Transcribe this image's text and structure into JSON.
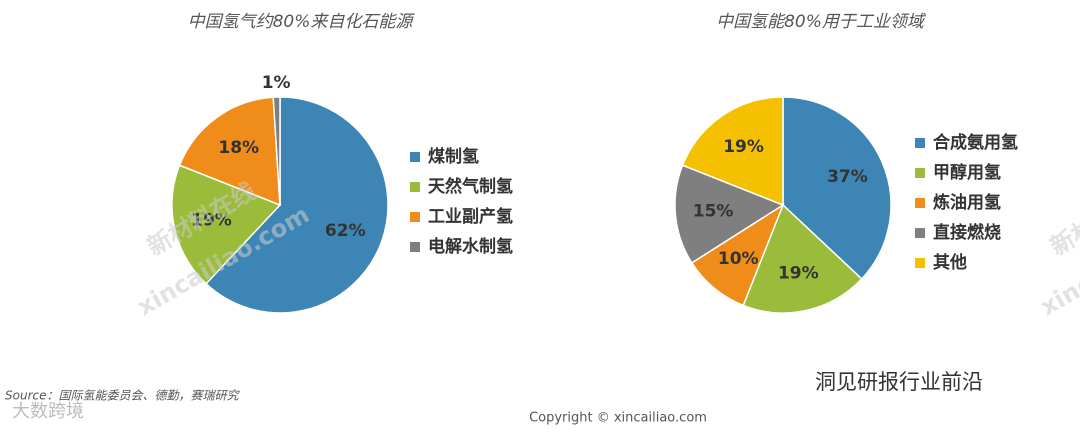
{
  "chart_data": [
    {
      "type": "pie",
      "title": "中国氢气约80%来自化石能源",
      "categories": [
        "煤制氢",
        "天然气制氢",
        "工业副产氢",
        "电解水制氢"
      ],
      "values": [
        62,
        19,
        18,
        1
      ],
      "value_labels": [
        "62%",
        "19%",
        "18%",
        "1%"
      ],
      "colors": [
        "#3d85b5",
        "#9bbb3b",
        "#f08c1a",
        "#7f7f7f"
      ]
    },
    {
      "type": "pie",
      "title": "中国氢能80%用于工业领域",
      "categories": [
        "合成氨用氢",
        "甲醇用氢",
        "炼油用氢",
        "直接燃烧",
        "其他"
      ],
      "values": [
        37,
        19,
        10,
        15,
        19
      ],
      "value_labels": [
        "37%",
        "19%",
        "10%",
        "15%",
        "19%"
      ],
      "colors": [
        "#3d85b5",
        "#9bbb3b",
        "#f08c1a",
        "#7f7f7f",
        "#f5c000"
      ]
    }
  ],
  "source": "Source：国际氢能委员会、德勤，赛瑞研究",
  "copyright": "Copyright © xincailiao.com",
  "wechat": "洞见研报行业前沿",
  "watermarks": [
    "新材料在线",
    "xincailiao.com",
    "大数跨境"
  ]
}
